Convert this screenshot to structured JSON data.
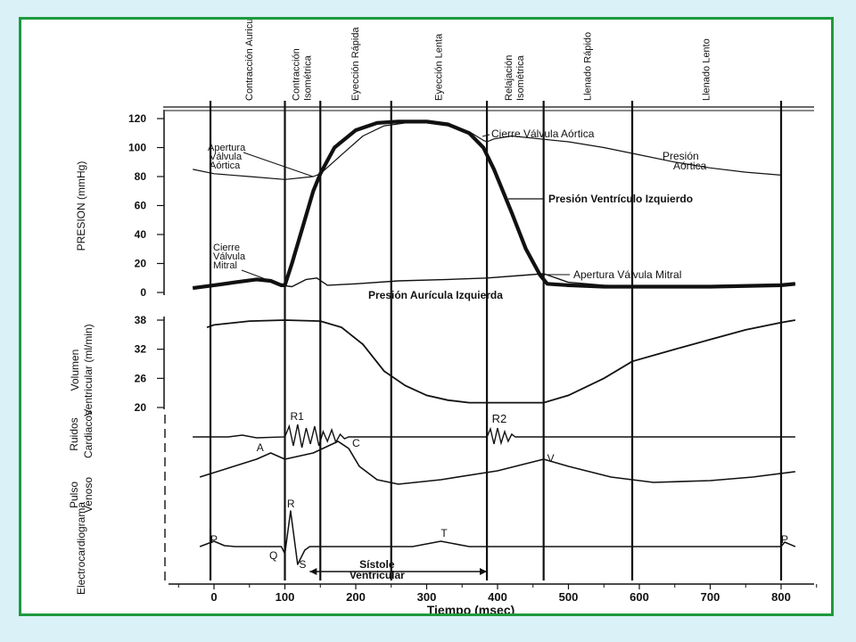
{
  "colors": {
    "background": "#d9f1f7",
    "frame_border": "#1f9a3c",
    "ink": "#111111"
  },
  "chart_data": {
    "type": "line",
    "xlabel": "Tiempo (msec)",
    "x_ticks": [
      0,
      100,
      200,
      300,
      400,
      500,
      600,
      700,
      800
    ],
    "xlim": [
      -20,
      840
    ],
    "phases": [
      {
        "label": "Contracción Auricular",
        "start": 0,
        "end": 100
      },
      {
        "label": "Contracción Isométrica",
        "start": 100,
        "end": 150
      },
      {
        "label": "Eyección Rápida",
        "start": 150,
        "end": 250
      },
      {
        "label": "Eyección Lenta",
        "start": 250,
        "end": 385
      },
      {
        "label": "Relajación Isométrica",
        "start": 385,
        "end": 465
      },
      {
        "label": "Llenado Rápido",
        "start": 465,
        "end": 590
      },
      {
        "label": "Llenado Lento",
        "start": 590,
        "end": 800
      }
    ],
    "event_lines": [
      -5,
      100,
      150,
      250,
      385,
      465,
      590,
      800
    ],
    "panels": [
      {
        "id": "pressure",
        "ylabel": "PRESION (mmHg)",
        "y_ticks": [
          0,
          20,
          40,
          60,
          80,
          100,
          120
        ],
        "ylim": [
          0,
          120
        ],
        "series": [
          {
            "name": "Presión Aórtica",
            "points": [
              [
                -30,
                85
              ],
              [
                0,
                82
              ],
              [
                50,
                80
              ],
              [
                100,
                78
              ],
              [
                140,
                80
              ],
              [
                150,
                82
              ],
              [
                180,
                95
              ],
              [
                210,
                108
              ],
              [
                240,
                115
              ],
              [
                270,
                117
              ],
              [
                300,
                117
              ],
              [
                330,
                115
              ],
              [
                360,
                111
              ],
              [
                380,
                105
              ],
              [
                385,
                104
              ],
              [
                395,
                106
              ],
              [
                420,
                108
              ],
              [
                460,
                106
              ],
              [
                500,
                104
              ],
              [
                550,
                100
              ],
              [
                600,
                95
              ],
              [
                650,
                90
              ],
              [
                700,
                86
              ],
              [
                750,
                83
              ],
              [
                800,
                81
              ]
            ]
          },
          {
            "name": "Presión Ventrículo Izquierdo",
            "points": [
              [
                -30,
                3
              ],
              [
                0,
                5
              ],
              [
                30,
                7
              ],
              [
                60,
                9
              ],
              [
                80,
                8
              ],
              [
                95,
                5
              ],
              [
                100,
                5
              ],
              [
                110,
                20
              ],
              [
                125,
                45
              ],
              [
                140,
                70
              ],
              [
                150,
                82
              ],
              [
                170,
                100
              ],
              [
                200,
                112
              ],
              [
                230,
                117
              ],
              [
                260,
                118
              ],
              [
                300,
                118
              ],
              [
                330,
                116
              ],
              [
                360,
                110
              ],
              [
                380,
                100
              ],
              [
                395,
                85
              ],
              [
                420,
                55
              ],
              [
                440,
                30
              ],
              [
                460,
                12
              ],
              [
                470,
                6
              ],
              [
                500,
                5
              ],
              [
                550,
                4
              ],
              [
                600,
                4
              ],
              [
                700,
                4
              ],
              [
                800,
                5
              ],
              [
                820,
                6
              ]
            ]
          },
          {
            "name": "Presión Aurícula Izquierda",
            "points": [
              [
                -30,
                3
              ],
              [
                0,
                5
              ],
              [
                30,
                7
              ],
              [
                60,
                9
              ],
              [
                80,
                8
              ],
              [
                95,
                5
              ],
              [
                110,
                4
              ],
              [
                130,
                9
              ],
              [
                145,
                10
              ],
              [
                160,
                5
              ],
              [
                200,
                6
              ],
              [
                260,
                8
              ],
              [
                330,
                9
              ],
              [
                385,
                10
              ],
              [
                440,
                12
              ],
              [
                465,
                13
              ],
              [
                500,
                7
              ],
              [
                550,
                5
              ],
              [
                600,
                4
              ],
              [
                700,
                4
              ],
              [
                800,
                5
              ],
              [
                820,
                6
              ]
            ]
          }
        ],
        "annotations": [
          "Apertura Válvula Aórtica",
          "Cierre Válvula Aórtica",
          "Presión Aórtica",
          "Presión Ventrículo Izquierdo",
          "Cierre Válvula Mitral",
          "Apertura Válvula Mitral",
          "Presión Aurícula Izquierda"
        ]
      },
      {
        "id": "volume",
        "ylabel": "Volumen Ventricular (ml/min)",
        "y_ticks": [
          20,
          26,
          32,
          38
        ],
        "ylim": [
          20,
          39
        ],
        "series": [
          {
            "name": "",
            "points": [
              [
                -10,
                36.5
              ],
              [
                0,
                37
              ],
              [
                50,
                37.8
              ],
              [
                100,
                38
              ],
              [
                150,
                37.8
              ],
              [
                180,
                36.5
              ],
              [
                210,
                33
              ],
              [
                240,
                27.5
              ],
              [
                270,
                24.5
              ],
              [
                300,
                22.5
              ],
              [
                330,
                21.5
              ],
              [
                360,
                21
              ],
              [
                385,
                21
              ],
              [
                420,
                21
              ],
              [
                465,
                21
              ],
              [
                500,
                22.5
              ],
              [
                550,
                26
              ],
              [
                590,
                29.5
              ],
              [
                650,
                32
              ],
              [
                700,
                34
              ],
              [
                750,
                36
              ],
              [
                800,
                37.5
              ],
              [
                820,
                38
              ]
            ]
          }
        ]
      },
      {
        "id": "sounds",
        "ylabel": "Ruidos Cardiacos",
        "labels": [
          "R1",
          "R2"
        ]
      },
      {
        "id": "venous",
        "ylabel": "Pulso Venoso",
        "labels": [
          "A",
          "C",
          "V"
        ]
      },
      {
        "id": "ecg",
        "ylabel": "Electrocardiograma",
        "labels": [
          "P",
          "Q",
          "R",
          "S",
          "T",
          "P"
        ]
      }
    ],
    "systole_label": "Sístole Ventricular"
  }
}
